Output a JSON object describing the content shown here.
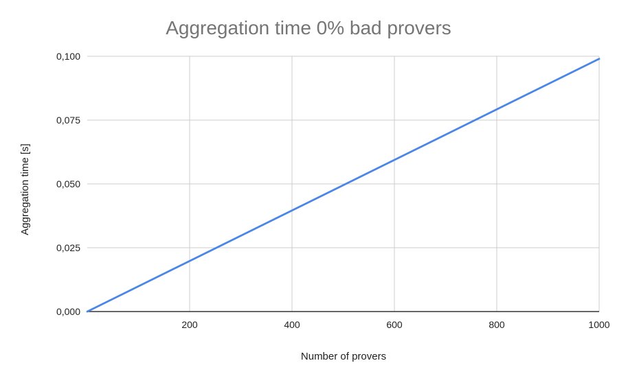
{
  "chart_data": {
    "type": "line",
    "title": "Aggregation time 0% bad provers",
    "xlabel": "Number of provers",
    "ylabel": "Aggregation time [s]",
    "x_tick_labels": [
      "200",
      "400",
      "600",
      "800",
      "1000"
    ],
    "y_tick_labels": [
      "0,000",
      "0,025",
      "0,050",
      "0,075",
      "0,100"
    ],
    "xlim": [
      0,
      1000
    ],
    "ylim": [
      0,
      0.1
    ],
    "x_ticks": [
      200,
      400,
      600,
      800,
      1000
    ],
    "y_ticks": [
      0,
      0.025,
      0.05,
      0.075,
      0.1
    ],
    "grid": true,
    "legend": "none",
    "series": [
      {
        "color": "#4a86e8",
        "x": [
          0,
          1000
        ],
        "y": [
          0,
          0.099
        ]
      }
    ]
  }
}
